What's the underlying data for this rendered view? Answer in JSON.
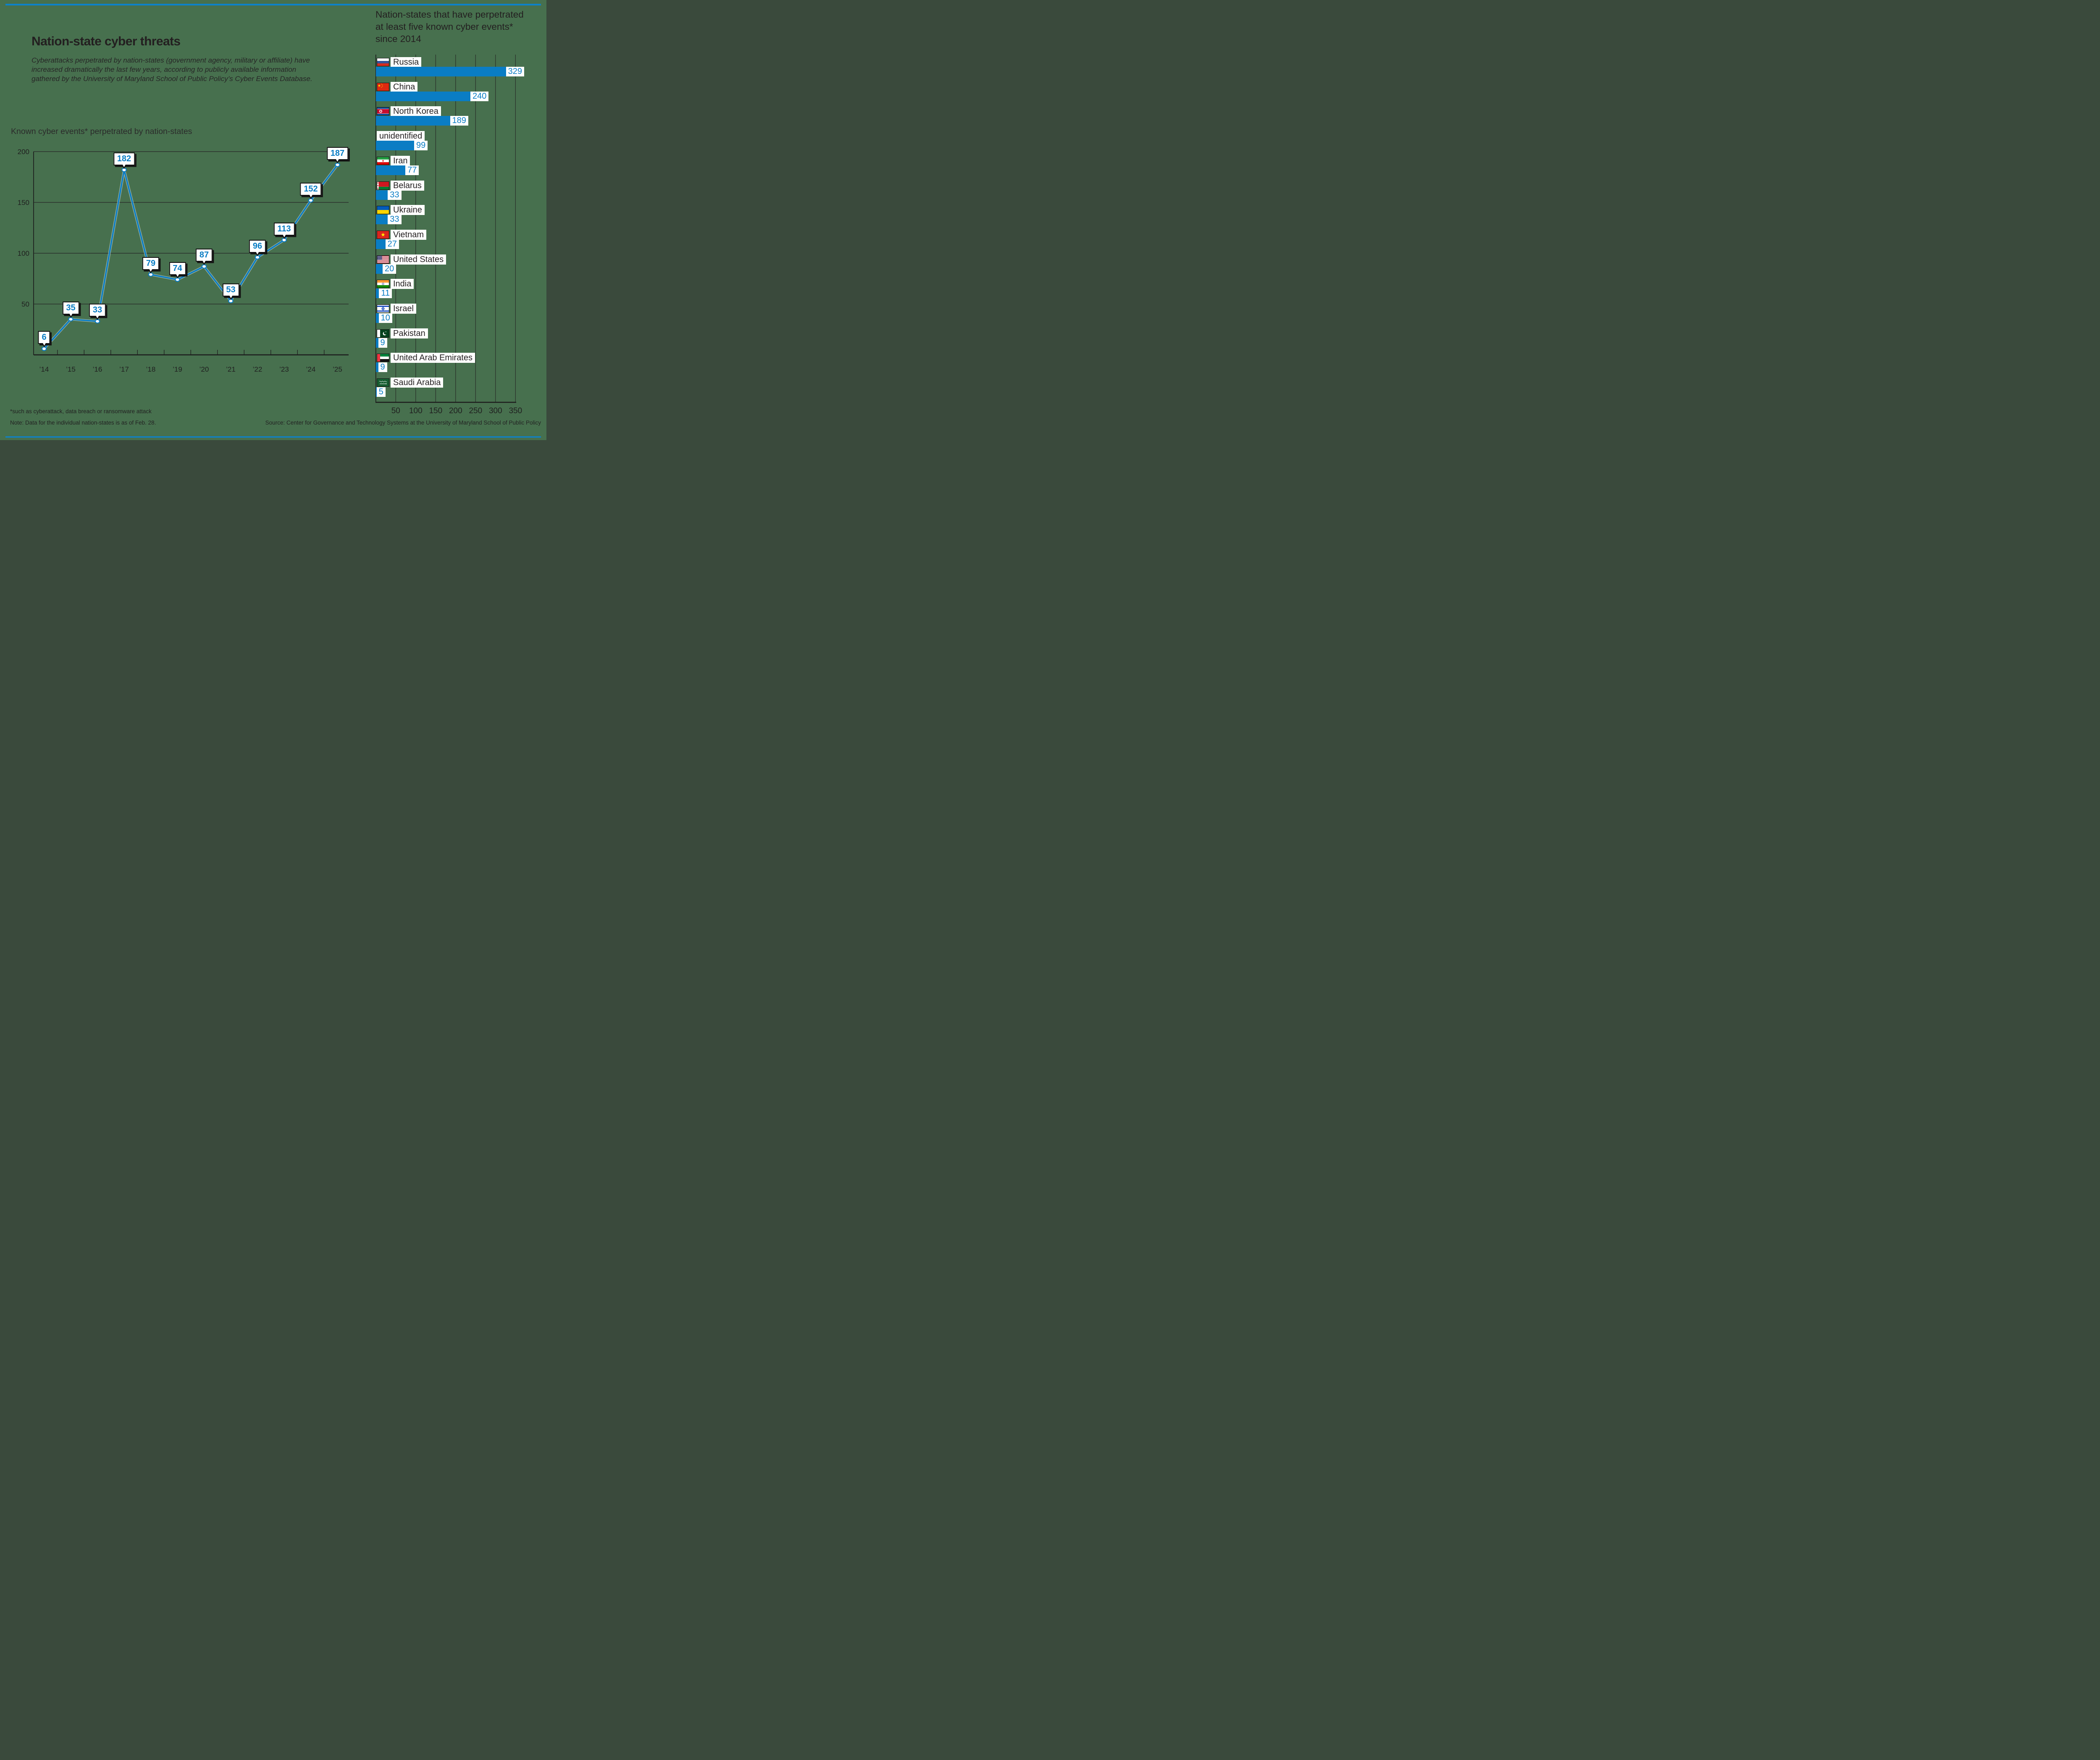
{
  "page": {
    "background": "#47704e",
    "accent_blue": "#0a7dc4",
    "rule_color": "#0d82cb",
    "text_dark": "#231f20"
  },
  "header": {
    "title": "Nation-state cyber threats",
    "subtitle": "Cyberattacks perpetrated by nation-states (government agency, military or affiliate) have increased dramatically the last few years, according to publicly available information gathered by the University of Maryland School of Public Policy’s Cyber Events Database."
  },
  "footer": {
    "footnote": "*such as cyberattack, data breach or ransomware attack",
    "note": "Note: Data for the individual nation-states is as of Feb. 28.",
    "source": "Source: Center for Governance and Technology Systems at the University of Maryland School of Public Policy"
  },
  "chart_data": [
    {
      "type": "line",
      "title": "Known cyber events* perpetrated by nation-states",
      "x": [
        "’14",
        "’15",
        "’16",
        "’17",
        "’18",
        "’19",
        "’20",
        "’21",
        "’22",
        "’23",
        "’24",
        "’25"
      ],
      "values": [
        6,
        35,
        33,
        182,
        79,
        74,
        87,
        53,
        96,
        113,
        152,
        187
      ],
      "ylim": [
        0,
        200
      ],
      "yticks": [
        50,
        100,
        150,
        200
      ],
      "grid": "horizontal",
      "line_color": "#0a7dc4",
      "marker": "white-dot",
      "data_labels": "callout-boxes"
    },
    {
      "type": "bar",
      "orientation": "horizontal",
      "title": "Nation-states that have perpetrated at least five known cyber events* since 2014",
      "categories": [
        "Russia",
        "China",
        "North Korea",
        "unidentified",
        "Iran",
        "Belarus",
        "Ukraine",
        "Vietnam",
        "United States",
        "India",
        "Israel",
        "Pakistan",
        "United Arab Emirates",
        "Saudi Arabia"
      ],
      "values": [
        329,
        240,
        189,
        99,
        77,
        33,
        33,
        27,
        20,
        11,
        10,
        9,
        9,
        5
      ],
      "flags": [
        "russia",
        "china",
        "north-korea",
        null,
        "iran",
        "belarus",
        "ukraine",
        "vietnam",
        "united-states",
        "india",
        "israel",
        "pakistan",
        "uae",
        "saudi-arabia"
      ],
      "xlim": [
        0,
        350
      ],
      "xticks": [
        50,
        100,
        150,
        200,
        250,
        300,
        350
      ],
      "grid": "vertical",
      "bar_color": "#0a7dc4"
    }
  ]
}
